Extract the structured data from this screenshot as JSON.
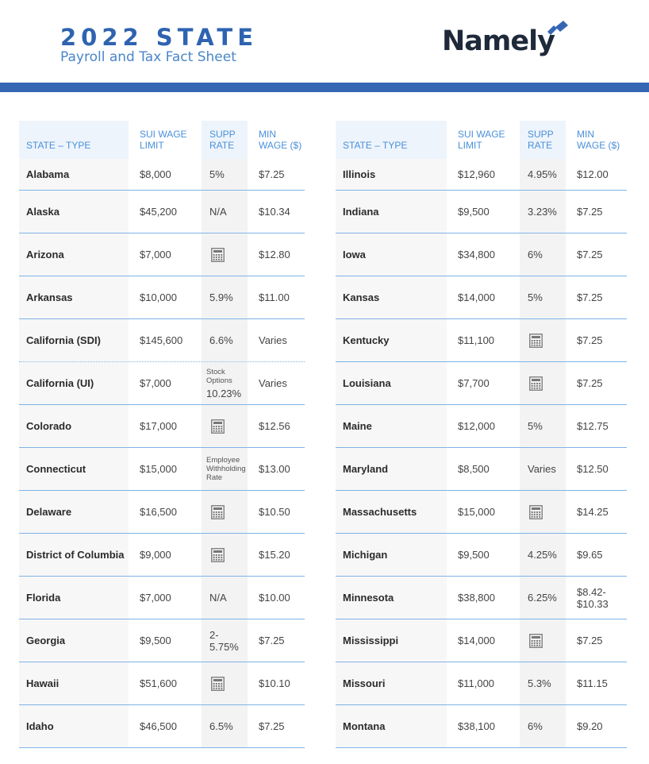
{
  "header": {
    "title": "2022 STATE",
    "subtitle": "Payroll and Tax Fact Sheet",
    "logo_text": "Namely"
  },
  "columns": {
    "state": "STATE – TYPE",
    "sui": [
      "SUI WAGE",
      "LIMIT"
    ],
    "supp": [
      "SUPP",
      "RATE"
    ],
    "min": [
      "MIN",
      "WAGE ($)"
    ]
  },
  "left_rows": [
    {
      "state": "Alabama",
      "sui": "$8,000",
      "supp": "5%",
      "min": "$7.25"
    },
    {
      "state": "Alaska",
      "sui": "$45,200",
      "supp": "N/A",
      "min": "$10.34"
    },
    {
      "state": "Arizona",
      "sui": "$7,000",
      "supp_icon": "calculator-icon",
      "min": "$12.80"
    },
    {
      "state": "Arkansas",
      "sui": "$10,000",
      "supp": "5.9%",
      "min": "$11.00"
    },
    {
      "state": "California (SDI)",
      "sui": "$145,600",
      "supp": "6.6%",
      "min": "Varies"
    },
    {
      "state": "California (UI)",
      "sui": "$7,000",
      "supp_note": [
        "Stock",
        "Options"
      ],
      "supp": "10.23%",
      "min": "Varies"
    },
    {
      "state": "Colorado",
      "sui": "$17,000",
      "supp_icon": "calculator-icon",
      "min": "$12.56"
    },
    {
      "state": "Connecticut",
      "sui": "$15,000",
      "supp_note": [
        "Employee",
        "Withholding",
        "Rate"
      ],
      "min": "$13.00"
    },
    {
      "state": "Delaware",
      "sui": "$16,500",
      "supp_icon": "calculator-icon",
      "min": "$10.50"
    },
    {
      "state": "District of Columbia",
      "sui": "$9,000",
      "supp_icon": "calculator-icon",
      "min": "$15.20"
    },
    {
      "state": "Florida",
      "sui": "$7,000",
      "supp": "N/A",
      "min": "$10.00"
    },
    {
      "state": "Georgia",
      "sui": "$9,500",
      "supp": "2-5.75%",
      "min": "$7.25"
    },
    {
      "state": "Hawaii",
      "sui": "$51,600",
      "supp_icon": "calculator-icon",
      "min": "$10.10"
    },
    {
      "state": "Idaho",
      "sui": "$46,500",
      "supp": "6.5%",
      "min": "$7.25"
    }
  ],
  "right_rows": [
    {
      "state": "Illinois",
      "sui": "$12,960",
      "supp": "4.95%",
      "min": "$12.00"
    },
    {
      "state": "Indiana",
      "sui": "$9,500",
      "supp": "3.23%",
      "min": "$7.25"
    },
    {
      "state": "Iowa",
      "sui": "$34,800",
      "supp": "6%",
      "min": "$7.25"
    },
    {
      "state": "Kansas",
      "sui": "$14,000",
      "supp": "5%",
      "min": "$7.25"
    },
    {
      "state": "Kentucky",
      "sui": "$11,100",
      "supp_icon": "calculator-icon",
      "min": "$7.25"
    },
    {
      "state": "Louisiana",
      "sui": "$7,700",
      "supp_icon": "calculator-icon",
      "min": "$7.25"
    },
    {
      "state": "Maine",
      "sui": "$12,000",
      "supp": "5%",
      "min": "$12.75"
    },
    {
      "state": "Maryland",
      "sui": "$8,500",
      "supp": "Varies",
      "min": "$12.50"
    },
    {
      "state": "Massachusetts",
      "sui": "$15,000",
      "supp_icon": "calculator-icon",
      "min": "$14.25"
    },
    {
      "state": "Michigan",
      "sui": "$9,500",
      "supp": "4.25%",
      "min": "$9.65"
    },
    {
      "state": "Minnesota",
      "sui": "$38,800",
      "supp": "6.25%",
      "min": [
        "$8.42-",
        "$10.33"
      ]
    },
    {
      "state": "Mississippi",
      "sui": "$14,000",
      "supp_icon": "calculator-icon",
      "min": "$7.25"
    },
    {
      "state": "Missouri",
      "sui": "$11,000",
      "supp": "5.3%",
      "min": "$11.15"
    },
    {
      "state": "Montana",
      "sui": "$38,100",
      "supp": "6%",
      "min": "$9.20"
    }
  ]
}
